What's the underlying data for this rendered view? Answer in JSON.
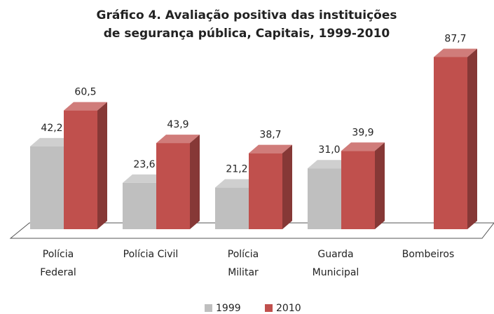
{
  "chart_data": {
    "type": "bar3d",
    "title": [
      "Gráfico 4. Avaliação positiva das instituições",
      "de segurança pública, Capitais, 1999-2010"
    ],
    "categories": [
      [
        "Polícia",
        "Federal"
      ],
      [
        "Polícia Civil"
      ],
      [
        "Polícia",
        "Militar"
      ],
      [
        "Guarda",
        "Municipal"
      ],
      [
        "Bombeiros"
      ]
    ],
    "series": [
      {
        "name": "1999",
        "color": "#bfbfbf",
        "values": [
          42.2,
          23.6,
          21.2,
          31.0,
          null
        ],
        "value_labels": [
          "42,2",
          "23,6",
          "21,2",
          "31,0",
          null
        ]
      },
      {
        "name": "2010",
        "color": "#c0504d",
        "values": [
          60.5,
          43.9,
          38.7,
          39.9,
          87.7
        ],
        "value_labels": [
          "60,5",
          "43,9",
          "38,7",
          "39,9",
          "87,7"
        ]
      }
    ],
    "legend": "bottom"
  }
}
